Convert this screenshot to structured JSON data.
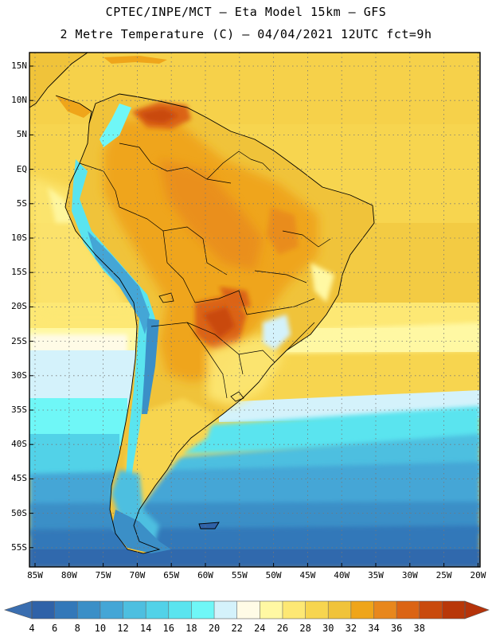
{
  "title": {
    "line1": "CPTEC/INPE/MCT –  Eta Model 15km – GFS",
    "line2": "2 Metre Temperature (C) – 04/04/2021 12UTC fct=9h"
  },
  "latitude_labels": [
    "15N",
    "10N",
    "5N",
    "EQ",
    "5S",
    "10S",
    "15S",
    "20S",
    "25S",
    "30S",
    "35S",
    "40S",
    "45S",
    "50S",
    "55S"
  ],
  "longitude_labels": [
    "85W",
    "80W",
    "75W",
    "70W",
    "65W",
    "60W",
    "55W",
    "50W",
    "45W",
    "40W",
    "35W",
    "30W",
    "25W",
    "20W"
  ],
  "colorbar": {
    "labels": [
      "4",
      "6",
      "8",
      "10",
      "12",
      "14",
      "16",
      "18",
      "20",
      "22",
      "24",
      "26",
      "28",
      "30",
      "32",
      "34",
      "36",
      "38"
    ],
    "colors": [
      "#2f62a8",
      "#3378b9",
      "#3b8fc7",
      "#44a6d6",
      "#4dbfe0",
      "#52d2e8",
      "#5ae4ef",
      "#6ff7f7",
      "#d4f2fb",
      "#fffbe6",
      "#fff8a3",
      "#fde874",
      "#f7d54f",
      "#f0c33a",
      "#efa51a",
      "#e8871c",
      "#db6414",
      "#c94a0c",
      "#b83708"
    ],
    "end_arrow_low": "#3a6eb0",
    "end_arrow_high": "#b5330a"
  }
}
